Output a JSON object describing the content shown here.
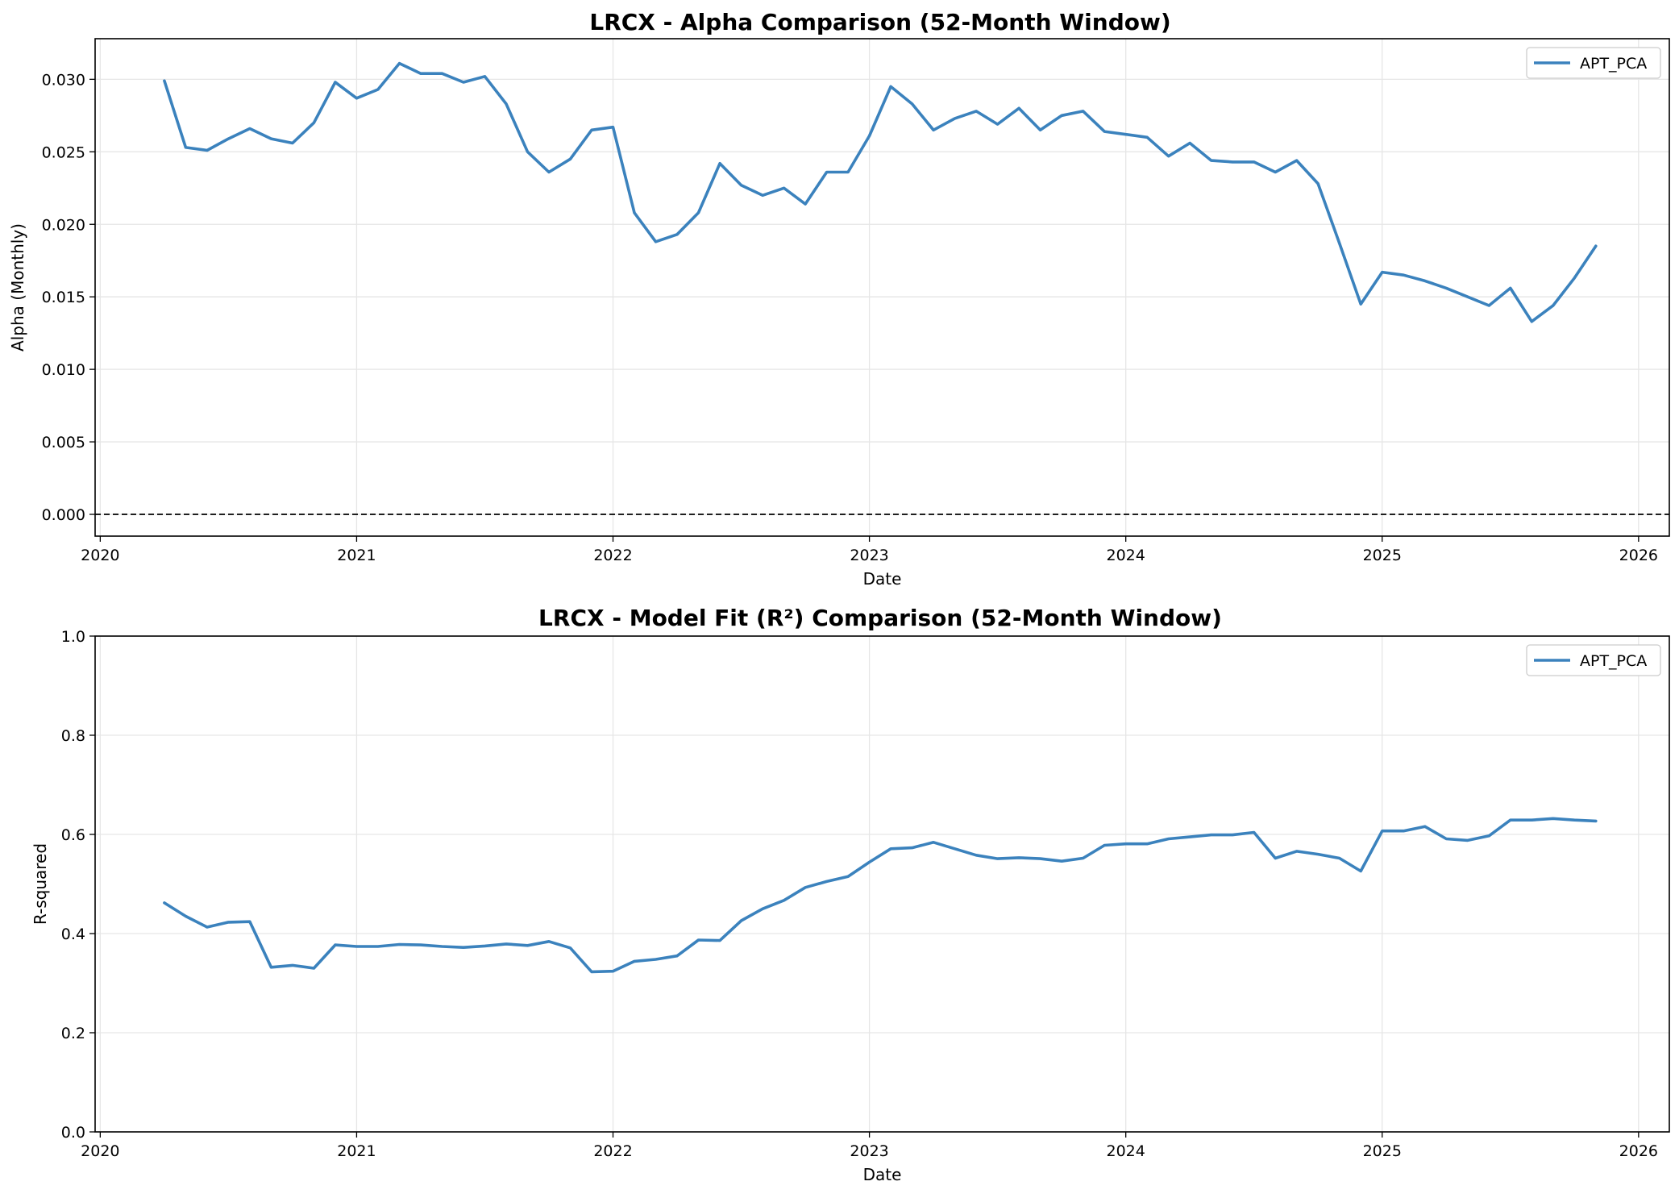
{
  "chart_data": [
    {
      "type": "line",
      "title": "LRCX - Alpha Comparison (52-Month Window)",
      "xlabel": "Date",
      "ylabel": "Alpha (Monthly)",
      "xlim": [
        2019.98,
        2026.12
      ],
      "ylim": [
        -0.0015,
        0.0328
      ],
      "xticks": [
        2020,
        2021,
        2022,
        2023,
        2024,
        2025,
        2026
      ],
      "yticks": [
        0.0,
        0.005,
        0.01,
        0.015,
        0.02,
        0.025,
        0.03
      ],
      "ytick_labels": [
        "0.000",
        "0.005",
        "0.010",
        "0.015",
        "0.020",
        "0.025",
        "0.030"
      ],
      "grid": true,
      "legend_position": "top-right",
      "reference_line": {
        "y": 0.0,
        "style": "dashed",
        "color": "#000000"
      },
      "series": [
        {
          "name": "APT_PCA",
          "color": "#3b82bd",
          "x": [
            "2020-04",
            "2020-05",
            "2020-06",
            "2020-07",
            "2020-08",
            "2020-09",
            "2020-10",
            "2020-11",
            "2020-12",
            "2021-01",
            "2021-02",
            "2021-03",
            "2021-04",
            "2021-05",
            "2021-06",
            "2021-07",
            "2021-08",
            "2021-09",
            "2021-10",
            "2021-11",
            "2021-12",
            "2022-01",
            "2022-02",
            "2022-03",
            "2022-04",
            "2022-05",
            "2022-06",
            "2022-07",
            "2022-08",
            "2022-09",
            "2022-10",
            "2022-11",
            "2022-12",
            "2023-01",
            "2023-02",
            "2023-03",
            "2023-04",
            "2023-05",
            "2023-06",
            "2023-07",
            "2023-08",
            "2023-09",
            "2023-10",
            "2023-11",
            "2023-12",
            "2024-01",
            "2024-02",
            "2024-03",
            "2024-04",
            "2024-05",
            "2024-06",
            "2024-07",
            "2024-08",
            "2024-09",
            "2024-10",
            "2024-11",
            "2024-12",
            "2025-01",
            "2025-02",
            "2025-03",
            "2025-04",
            "2025-05",
            "2025-06",
            "2025-07",
            "2025-08",
            "2025-09",
            "2025-10",
            "2025-11"
          ],
          "values": [
            0.0299,
            0.0253,
            0.0251,
            0.0259,
            0.0266,
            0.0259,
            0.0256,
            0.027,
            0.0298,
            0.0287,
            0.0293,
            0.0311,
            0.0304,
            0.0304,
            0.0298,
            0.0302,
            0.0283,
            0.025,
            0.0236,
            0.0245,
            0.0265,
            0.0267,
            0.0208,
            0.0188,
            0.0193,
            0.0208,
            0.0242,
            0.0227,
            0.022,
            0.0225,
            0.0214,
            0.0236,
            0.0236,
            0.0261,
            0.0295,
            0.0283,
            0.0265,
            0.0273,
            0.0278,
            0.0269,
            0.028,
            0.0265,
            0.0275,
            0.0278,
            0.0264,
            0.0262,
            0.026,
            0.0247,
            0.0256,
            0.0244,
            0.0243,
            0.0243,
            0.0236,
            0.0244,
            0.0228,
            0.0187,
            0.0145,
            0.0167,
            0.0165,
            0.0161,
            0.0156,
            0.015,
            0.0144,
            0.0156,
            0.0133,
            0.0144,
            0.0163,
            0.0185
          ]
        }
      ]
    },
    {
      "type": "line",
      "title": "LRCX - Model Fit (R²) Comparison (52-Month Window)",
      "xlabel": "Date",
      "ylabel": "R-squared",
      "xlim": [
        2019.98,
        2026.12
      ],
      "ylim": [
        0.0,
        1.0
      ],
      "xticks": [
        2020,
        2021,
        2022,
        2023,
        2024,
        2025,
        2026
      ],
      "yticks": [
        0.0,
        0.2,
        0.4,
        0.6,
        0.8,
        1.0
      ],
      "ytick_labels": [
        "0.0",
        "0.2",
        "0.4",
        "0.6",
        "0.8",
        "1.0"
      ],
      "grid": true,
      "legend_position": "top-right",
      "series": [
        {
          "name": "APT_PCA",
          "color": "#3b82bd",
          "x": [
            "2020-04",
            "2020-05",
            "2020-06",
            "2020-07",
            "2020-08",
            "2020-09",
            "2020-10",
            "2020-11",
            "2020-12",
            "2021-01",
            "2021-02",
            "2021-03",
            "2021-04",
            "2021-05",
            "2021-06",
            "2021-07",
            "2021-08",
            "2021-09",
            "2021-10",
            "2021-11",
            "2021-12",
            "2022-01",
            "2022-02",
            "2022-03",
            "2022-04",
            "2022-05",
            "2022-06",
            "2022-07",
            "2022-08",
            "2022-09",
            "2022-10",
            "2022-11",
            "2022-12",
            "2023-01",
            "2023-02",
            "2023-03",
            "2023-04",
            "2023-05",
            "2023-06",
            "2023-07",
            "2023-08",
            "2023-09",
            "2023-10",
            "2023-11",
            "2023-12",
            "2024-01",
            "2024-02",
            "2024-03",
            "2024-04",
            "2024-05",
            "2024-06",
            "2024-07",
            "2024-08",
            "2024-09",
            "2024-10",
            "2024-11",
            "2024-12",
            "2025-01",
            "2025-02",
            "2025-03",
            "2025-04",
            "2025-05",
            "2025-06",
            "2025-07",
            "2025-08",
            "2025-09",
            "2025-10",
            "2025-11"
          ],
          "values": [
            0.462,
            0.435,
            0.413,
            0.423,
            0.424,
            0.332,
            0.336,
            0.33,
            0.377,
            0.374,
            0.374,
            0.378,
            0.377,
            0.374,
            0.372,
            0.375,
            0.379,
            0.376,
            0.384,
            0.371,
            0.323,
            0.324,
            0.344,
            0.348,
            0.355,
            0.387,
            0.386,
            0.426,
            0.45,
            0.467,
            0.493,
            0.505,
            0.515,
            0.544,
            0.571,
            0.573,
            0.584,
            0.571,
            0.558,
            0.551,
            0.553,
            0.551,
            0.546,
            0.552,
            0.578,
            0.581,
            0.581,
            0.591,
            0.595,
            0.599,
            0.599,
            0.604,
            0.552,
            0.566,
            0.56,
            0.552,
            0.526,
            0.607,
            0.607,
            0.616,
            0.591,
            0.588,
            0.597,
            0.629,
            0.629,
            0.632,
            0.629,
            0.627
          ]
        }
      ]
    }
  ]
}
